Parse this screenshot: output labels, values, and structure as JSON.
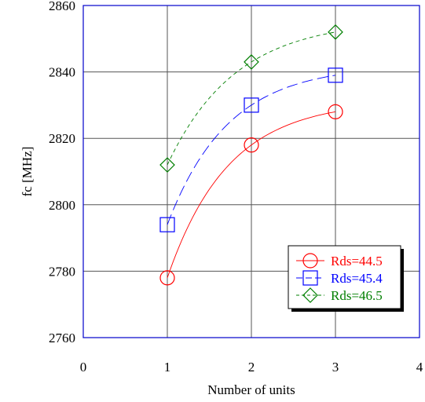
{
  "chart_data": {
    "type": "scatter",
    "title": "",
    "xlabel": "Number of units",
    "ylabel": "fc [MHz]",
    "xlim": [
      0,
      4
    ],
    "ylim": [
      2760,
      2860
    ],
    "xticks": [
      "0",
      "1",
      "2",
      "3",
      "4"
    ],
    "yticks": [
      "2760",
      "2780",
      "2800",
      "2820",
      "2840",
      "2860"
    ],
    "grid": true,
    "legend_position": "lower-right",
    "x": [
      1,
      2,
      3
    ],
    "series": [
      {
        "name": "Rds=44.5",
        "values": [
          2778,
          2818,
          2828
        ],
        "color": "#ff0000",
        "marker": "circle",
        "line": "solid"
      },
      {
        "name": "Rds=45.4",
        "values": [
          2794,
          2830,
          2839
        ],
        "color": "#0000ff",
        "marker": "square",
        "line": "dashed"
      },
      {
        "name": "Rds=46.5",
        "values": [
          2812,
          2843,
          2852
        ],
        "color": "#007f00",
        "marker": "diamond",
        "line": "dashdot"
      }
    ]
  }
}
